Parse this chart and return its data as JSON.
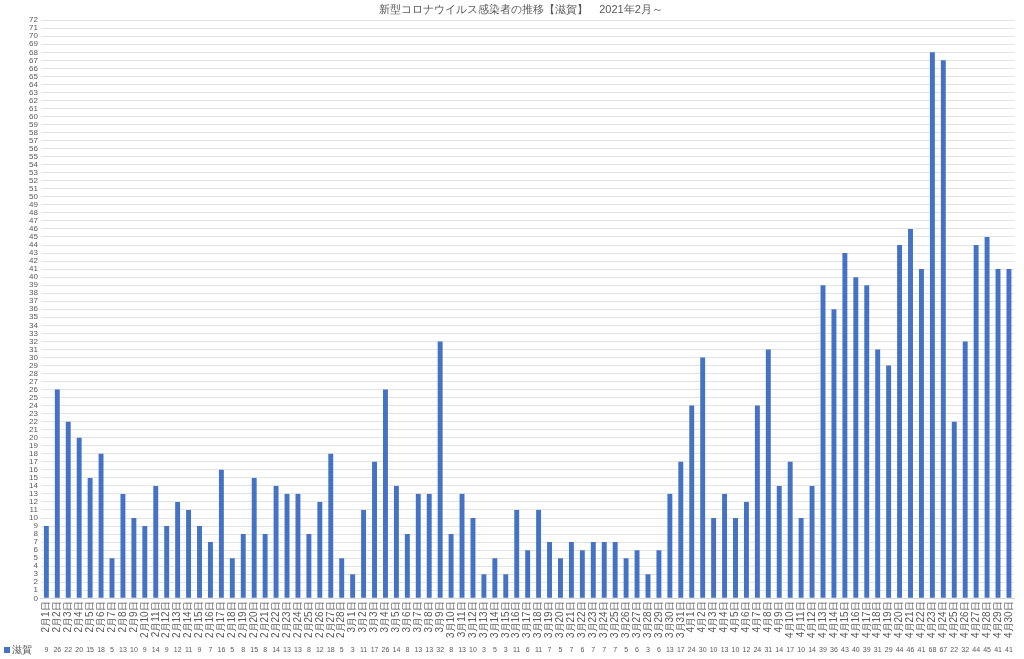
{
  "chart_data": {
    "type": "bar",
    "title": "新型コロナウイルス感染者の推移【滋賀】　2021年2月～",
    "categories": [
      "2月1日",
      "2月2日",
      "2月3日",
      "2月4日",
      "2月5日",
      "2月6日",
      "2月7日",
      "2月8日",
      "2月9日",
      "2月10日",
      "2月11日",
      "2月12日",
      "2月13日",
      "2月14日",
      "2月15日",
      "2月16日",
      "2月17日",
      "2月18日",
      "2月19日",
      "2月20日",
      "2月21日",
      "2月22日",
      "2月23日",
      "2月24日",
      "2月25日",
      "2月26日",
      "2月27日",
      "2月28日",
      "3月1日",
      "3月2日",
      "3月3日",
      "3月4日",
      "3月5日",
      "3月6日",
      "3月7日",
      "3月8日",
      "3月9日",
      "3月10日",
      "3月11日",
      "3月12日",
      "3月13日",
      "3月14日",
      "3月15日",
      "3月16日",
      "3月17日",
      "3月18日",
      "3月19日",
      "3月20日",
      "3月21日",
      "3月22日",
      "3月23日",
      "3月24日",
      "3月25日",
      "3月26日",
      "3月27日",
      "3月28日",
      "3月29日",
      "3月30日",
      "3月31日",
      "4月1日",
      "4月2日",
      "4月3日",
      "4月4日",
      "4月5日",
      "4月6日",
      "4月7日",
      "4月8日",
      "4月9日",
      "4月10日",
      "4月11日",
      "4月12日",
      "4月13日",
      "4月14日",
      "4月15日",
      "4月16日",
      "4月17日",
      "4月18日",
      "4月19日",
      "4月20日",
      "4月21日",
      "4月22日",
      "4月23日",
      "4月24日",
      "4月25日",
      "4月26日",
      "4月27日",
      "4月28日",
      "4月29日",
      "4月30日"
    ],
    "series": [
      {
        "name": "滋賀",
        "color": "#4472c4",
        "values": [
          9,
          26,
          22,
          20,
          15,
          18,
          5,
          13,
          10,
          9,
          14,
          9,
          12,
          11,
          9,
          7,
          16,
          5,
          8,
          15,
          8,
          14,
          13,
          13,
          8,
          12,
          18,
          5,
          3,
          11,
          17,
          26,
          14,
          8,
          13,
          13,
          32,
          8,
          13,
          10,
          3,
          5,
          3,
          11,
          6,
          11,
          7,
          5,
          7,
          6,
          7,
          7,
          7,
          5,
          6,
          3,
          6,
          13,
          17,
          24,
          30,
          10,
          13,
          10,
          12,
          24,
          31,
          14,
          17,
          10,
          14,
          39,
          36,
          43,
          40,
          39,
          31,
          29,
          44,
          46,
          41,
          68,
          67,
          22,
          32,
          44,
          45,
          41,
          41
        ]
      }
    ],
    "ylim": [
      0,
      72
    ],
    "yticks": [
      0,
      1,
      2,
      3,
      4,
      5,
      6,
      7,
      8,
      9,
      10,
      11,
      12,
      13,
      14,
      15,
      16,
      17,
      18,
      19,
      20,
      21,
      22,
      23,
      24,
      25,
      26,
      27,
      28,
      29,
      30,
      31,
      32,
      33,
      34,
      35,
      36,
      37,
      38,
      39,
      40,
      41,
      42,
      43,
      44,
      45,
      46,
      47,
      48,
      49,
      50,
      51,
      52,
      53,
      54,
      55,
      56,
      57,
      58,
      59,
      60,
      61,
      62,
      63,
      64,
      65,
      66,
      67,
      68,
      69,
      70,
      71,
      72
    ],
    "grid": "y",
    "legend": "bottom",
    "data_labels": true
  }
}
